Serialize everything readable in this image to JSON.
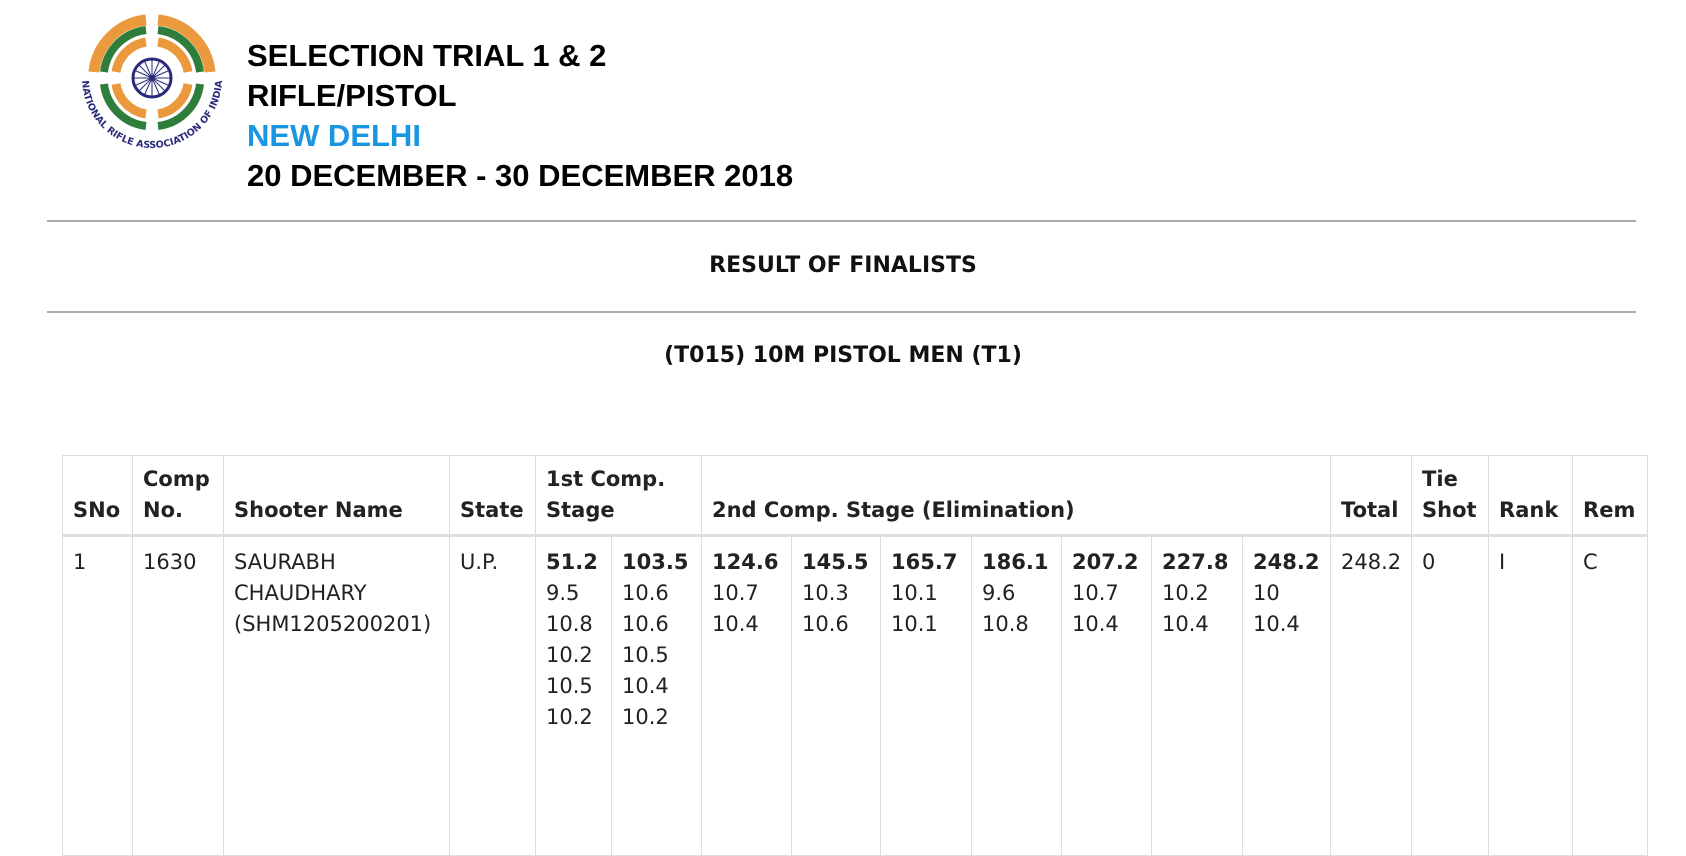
{
  "header": {
    "logo_text": "NATIONAL RIFLE ASSOCIATION OF INDIA",
    "title_lines": [
      "SELECTION TRIAL 1 & 2",
      "RIFLE/PISTOL",
      "NEW DELHI",
      "20 DECEMBER - 30 DECEMBER 2018"
    ]
  },
  "section_title": "RESULT OF FINALISTS",
  "event_title": "(T015) 10M PISTOL MEN (T1)",
  "table": {
    "headers": [
      "SNo",
      "Comp No.",
      "Shooter Name",
      "State",
      "1st Comp. Stage",
      "2nd Comp. Stage (Elimination)",
      "Total",
      "Tie Shot",
      "Rank",
      "Rem"
    ],
    "rows": [
      {
        "sno": 1,
        "comp_no": 1630,
        "name_lines": [
          "SAURABH",
          "CHAUDHARY",
          "(SHM1205200201)"
        ],
        "state": "U.P.",
        "stage1": [
          {
            "total": 51.2,
            "shots": [
              9.5,
              10.8,
              10.2,
              10.5,
              10.2
            ]
          },
          {
            "total": 103.5,
            "shots": [
              10.6,
              10.6,
              10.5,
              10.4,
              10.2
            ]
          }
        ],
        "stage2": [
          {
            "total": 124.6,
            "shots": [
              10.7,
              10.4
            ]
          },
          {
            "total": 145.5,
            "shots": [
              10.3,
              10.6
            ]
          },
          {
            "total": 165.7,
            "shots": [
              10.1,
              10.1
            ]
          },
          {
            "total": 186.1,
            "shots": [
              9.6,
              10.8
            ]
          },
          {
            "total": 207.2,
            "shots": [
              10.7,
              10.4
            ]
          },
          {
            "total": 227.8,
            "shots": [
              10.2,
              10.4
            ]
          },
          {
            "total": 248.2,
            "shots": [
              10,
              10.4
            ]
          }
        ],
        "total": 248.2,
        "tie_shot": 0,
        "rank": "I",
        "rem": "C"
      }
    ]
  }
}
